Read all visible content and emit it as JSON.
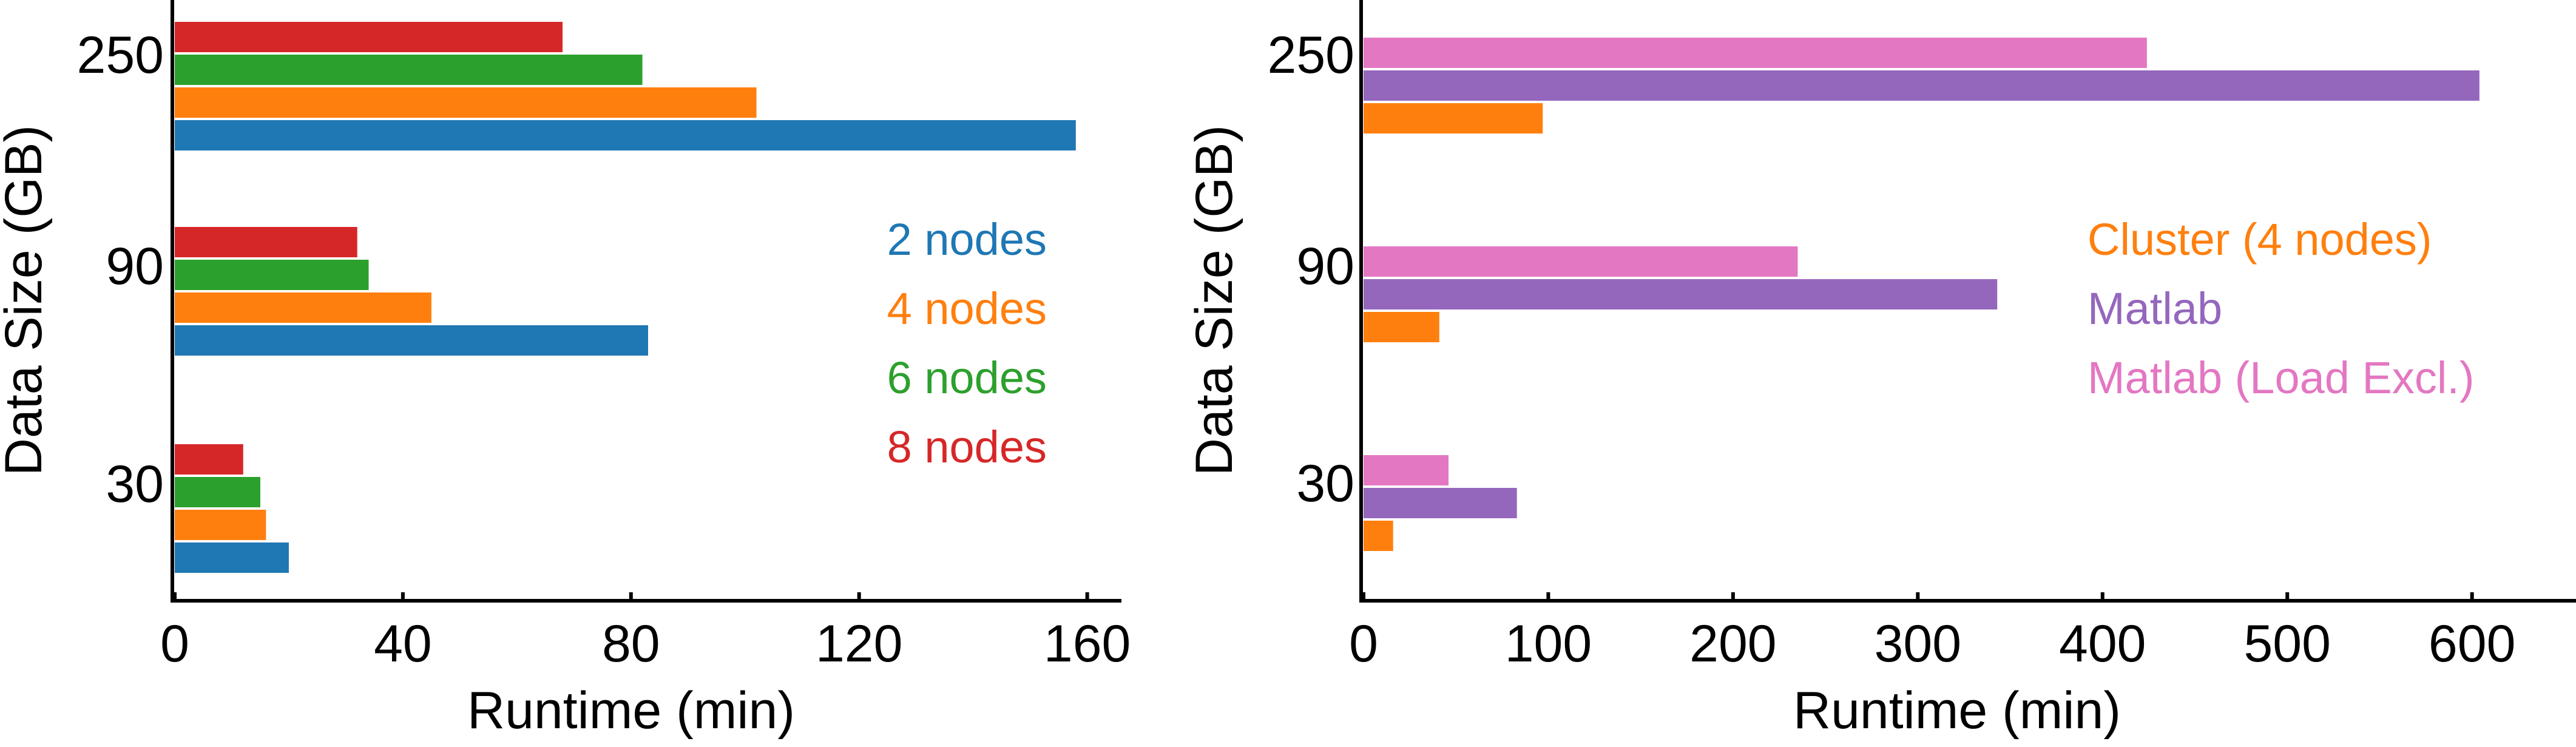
{
  "chart_data": [
    {
      "type": "bar",
      "orientation": "horizontal",
      "categories": [
        "30",
        "90",
        "250"
      ],
      "series": [
        {
          "name": "2 nodes",
          "color": "#1f77b4",
          "values": [
            20,
            83,
            158
          ]
        },
        {
          "name": "4 nodes",
          "color": "#ff7f0e",
          "values": [
            16,
            45,
            102
          ]
        },
        {
          "name": "6 nodes",
          "color": "#2ca02c",
          "values": [
            15,
            34,
            82
          ]
        },
        {
          "name": "8 nodes",
          "color": "#d62728",
          "values": [
            12,
            32,
            68
          ]
        }
      ],
      "xlabel": "Runtime (min)",
      "ylabel": "Data Size (GB)",
      "xlim": [
        0,
        166
      ],
      "xticks": [
        "0",
        "40",
        "80",
        "120",
        "160"
      ],
      "grid": false,
      "legend_position": "right"
    },
    {
      "type": "bar",
      "orientation": "horizontal",
      "categories": [
        "30",
        "90",
        "250"
      ],
      "series": [
        {
          "name": "Cluster (4 nodes)",
          "color": "#ff7f0e",
          "values": [
            16,
            41,
            97
          ]
        },
        {
          "name": "Matlab",
          "color": "#9467bd",
          "values": [
            83,
            343,
            604
          ]
        },
        {
          "name": "Matlab (Load Excl.)",
          "color": "#e377c2",
          "values": [
            46,
            235,
            424
          ]
        }
      ],
      "xlabel": "Runtime (min)",
      "ylabel": "Data Size (GB)",
      "xlim": [
        0,
        630
      ],
      "xticks": [
        "0",
        "100",
        "200",
        "300",
        "400",
        "500",
        "600"
      ],
      "grid": false,
      "legend_position": "right"
    }
  ]
}
